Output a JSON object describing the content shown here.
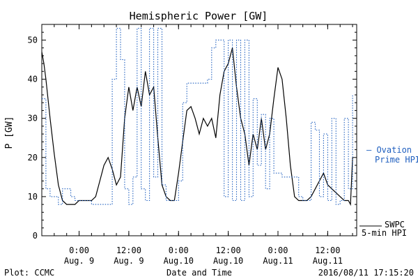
{
  "chart_data": {
    "type": "line",
    "title": "Hemispheric Power [GW]",
    "xlabel": "Date and Time",
    "ylabel": "P [GW]",
    "ylim": [
      0,
      54
    ],
    "y_ticks": [
      0,
      10,
      20,
      30,
      40,
      50
    ],
    "xlim": [
      "2016-08-08T15:00",
      "2016-08-11T19:00"
    ],
    "x_ticks": [
      {
        "t": "2016-08-09T00:00",
        "time": "0:00",
        "date": "Aug. 9"
      },
      {
        "t": "2016-08-09T12:00",
        "time": "12:00",
        "date": "Aug. 9"
      },
      {
        "t": "2016-08-10T00:00",
        "time": "0:00",
        "date": "Aug.10"
      },
      {
        "t": "2016-08-10T12:00",
        "time": "12:00",
        "date": "Aug.10"
      },
      {
        "t": "2016-08-11T00:00",
        "time": "0:00",
        "date": "Aug.11"
      },
      {
        "t": "2016-08-11T12:00",
        "time": "12:00",
        "date": "Aug.11"
      }
    ],
    "grid": false,
    "series": [
      {
        "name": "SWPC 5-min HPI",
        "color": "#000000",
        "style": "solid",
        "x": [
          "2016-08-08T15:00",
          "2016-08-08T15:30",
          "2016-08-08T16:00",
          "2016-08-08T16:30",
          "2016-08-08T17:00",
          "2016-08-08T18:00",
          "2016-08-08T19:00",
          "2016-08-08T20:00",
          "2016-08-08T21:00",
          "2016-08-08T22:00",
          "2016-08-08T23:00",
          "2016-08-09T00:00",
          "2016-08-09T01:00",
          "2016-08-09T02:00",
          "2016-08-09T03:00",
          "2016-08-09T04:00",
          "2016-08-09T05:00",
          "2016-08-09T06:00",
          "2016-08-09T07:00",
          "2016-08-09T08:00",
          "2016-08-09T09:00",
          "2016-08-09T10:00",
          "2016-08-09T11:00",
          "2016-08-09T12:00",
          "2016-08-09T13:00",
          "2016-08-09T14:00",
          "2016-08-09T15:00",
          "2016-08-09T16:00",
          "2016-08-09T17:00",
          "2016-08-09T18:00",
          "2016-08-09T19:00",
          "2016-08-09T20:00",
          "2016-08-09T21:00",
          "2016-08-09T22:00",
          "2016-08-09T23:00",
          "2016-08-10T00:00",
          "2016-08-10T01:00",
          "2016-08-10T02:00",
          "2016-08-10T03:00",
          "2016-08-10T04:00",
          "2016-08-10T05:00",
          "2016-08-10T06:00",
          "2016-08-10T07:00",
          "2016-08-10T08:00",
          "2016-08-10T09:00",
          "2016-08-10T10:00",
          "2016-08-10T11:00",
          "2016-08-10T12:00",
          "2016-08-10T13:00",
          "2016-08-10T14:00",
          "2016-08-10T15:00",
          "2016-08-10T16:00",
          "2016-08-10T17:00",
          "2016-08-10T18:00",
          "2016-08-10T19:00",
          "2016-08-10T20:00",
          "2016-08-10T21:00",
          "2016-08-10T22:00",
          "2016-08-10T23:00",
          "2016-08-11T00:00",
          "2016-08-11T01:00",
          "2016-08-11T02:00",
          "2016-08-11T03:00",
          "2016-08-11T04:00",
          "2016-08-11T05:00",
          "2016-08-11T06:00",
          "2016-08-11T07:00",
          "2016-08-11T08:00",
          "2016-08-11T09:00",
          "2016-08-11T10:00",
          "2016-08-11T11:00",
          "2016-08-11T12:00",
          "2016-08-11T13:00",
          "2016-08-11T14:00",
          "2016-08-11T15:00",
          "2016-08-11T16:00",
          "2016-08-11T17:00",
          "2016-08-11T17:30",
          "2016-08-11T18:00"
        ],
        "values": [
          47,
          44,
          40,
          35,
          30,
          21,
          13,
          9,
          8,
          8,
          8,
          9,
          9,
          9,
          9,
          10,
          14,
          18,
          20,
          17,
          13,
          15,
          30,
          38,
          32,
          38,
          33,
          42,
          36,
          38,
          25,
          13,
          10,
          9,
          9,
          16,
          24,
          32,
          33,
          30,
          26,
          30,
          28,
          30,
          25,
          36,
          42,
          44,
          48,
          38,
          30,
          26,
          18,
          26,
          22,
          30,
          22,
          26,
          35,
          43,
          40,
          30,
          18,
          10,
          9,
          9,
          9,
          10,
          12,
          14,
          16,
          13,
          12,
          11,
          10,
          9,
          9,
          8,
          20
        ]
      },
      {
        "name": "Ovation Prime HPI",
        "color": "#1f5fbf",
        "style": "dotted",
        "x": [
          "2016-08-08T15:00",
          "2016-08-08T16:00",
          "2016-08-08T17:00",
          "2016-08-08T19:00",
          "2016-08-08T20:00",
          "2016-08-08T22:00",
          "2016-08-08T23:00",
          "2016-08-09T02:00",
          "2016-08-09T03:00",
          "2016-08-09T04:00",
          "2016-08-09T06:00",
          "2016-08-09T08:00",
          "2016-08-09T09:00",
          "2016-08-09T10:00",
          "2016-08-09T11:00",
          "2016-08-09T12:00",
          "2016-08-09T13:00",
          "2016-08-09T14:00",
          "2016-08-09T15:00",
          "2016-08-09T16:00",
          "2016-08-09T17:00",
          "2016-08-09T18:00",
          "2016-08-09T19:00",
          "2016-08-09T20:00",
          "2016-08-09T21:00",
          "2016-08-09T22:00",
          "2016-08-09T23:00",
          "2016-08-10T00:00",
          "2016-08-10T01:00",
          "2016-08-10T02:00",
          "2016-08-10T03:00",
          "2016-08-10T04:00",
          "2016-08-10T05:00",
          "2016-08-10T06:00",
          "2016-08-10T07:00",
          "2016-08-10T08:00",
          "2016-08-10T09:00",
          "2016-08-10T10:00",
          "2016-08-10T11:00",
          "2016-08-10T12:00",
          "2016-08-10T13:00",
          "2016-08-10T14:00",
          "2016-08-10T15:00",
          "2016-08-10T16:00",
          "2016-08-10T17:00",
          "2016-08-10T18:00",
          "2016-08-10T19:00",
          "2016-08-10T20:00",
          "2016-08-10T21:00",
          "2016-08-10T22:00",
          "2016-08-10T23:00",
          "2016-08-11T00:00",
          "2016-08-11T01:00",
          "2016-08-11T02:00",
          "2016-08-11T03:00",
          "2016-08-11T04:00",
          "2016-08-11T05:00",
          "2016-08-11T06:00",
          "2016-08-11T07:00",
          "2016-08-11T08:00",
          "2016-08-11T09:00",
          "2016-08-11T10:00",
          "2016-08-11T11:00",
          "2016-08-11T12:00",
          "2016-08-11T13:00",
          "2016-08-11T14:00",
          "2016-08-11T15:00",
          "2016-08-11T16:00",
          "2016-08-11T17:00",
          "2016-08-11T18:00"
        ],
        "values": [
          35,
          12,
          10,
          8,
          12,
          10,
          9,
          9,
          8,
          8,
          8,
          40,
          53,
          45,
          12,
          8,
          15,
          53,
          12,
          9,
          53,
          15,
          53,
          13,
          9,
          9,
          9,
          14,
          34,
          39,
          39,
          39,
          39,
          39,
          40,
          48,
          50,
          50,
          10,
          50,
          9,
          50,
          9,
          50,
          10,
          35,
          18,
          31,
          12,
          30,
          16,
          16,
          15,
          15,
          15,
          15,
          10,
          9,
          9,
          29,
          27,
          10,
          26,
          9,
          30,
          8,
          9,
          30,
          12,
          36
        ]
      }
    ]
  },
  "labels": {
    "legend_ovation": "— Ovation",
    "legend_ovation_2": "Prime HPI",
    "legend_swpc": "SWPC",
    "legend_swpc_2": "5-min HPI",
    "footer_left": "Plot: CCMC",
    "footer_center": "Date and Time",
    "footer_right": "2016/08/11 17:15:20"
  },
  "colors": {
    "axis": "#000000",
    "swpc": "#000000",
    "ovation": "#1f5fbf",
    "background": "#ffffff"
  }
}
